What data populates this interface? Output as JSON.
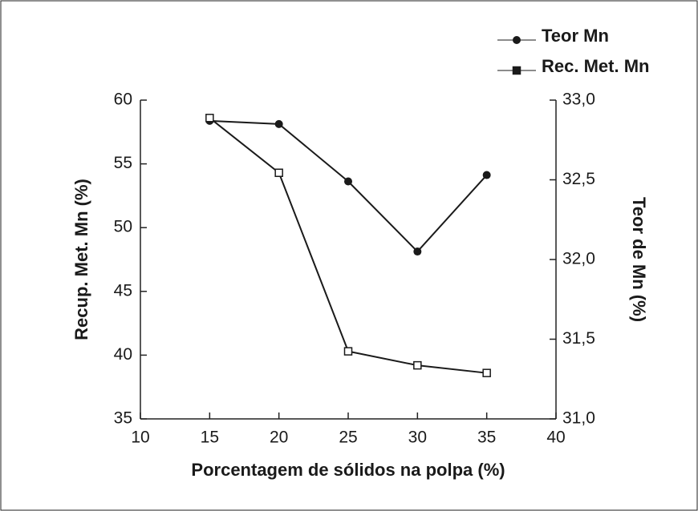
{
  "chart_data": {
    "type": "line",
    "x_label": "Porcentagem de sólidos na polpa (%)",
    "y_label": "Recup. Met. Mn (%)",
    "y2_label": "Teor de Mn (%)",
    "xlim": [
      10,
      40
    ],
    "xticks": [
      10,
      15,
      20,
      25,
      30,
      35,
      40
    ],
    "ylim": [
      35,
      60
    ],
    "yticks": [
      35,
      40,
      45,
      50,
      55,
      60
    ],
    "y2lim": [
      31.0,
      33.0
    ],
    "y2ticks": [
      {
        "value": 31.0,
        "label": "31,0"
      },
      {
        "value": 31.5,
        "label": "31,5"
      },
      {
        "value": 32.0,
        "label": "32,0"
      },
      {
        "value": 32.5,
        "label": "32,5"
      },
      {
        "value": 33.0,
        "label": "33,0"
      }
    ],
    "x": [
      15,
      20,
      25,
      30,
      35
    ],
    "series": [
      {
        "name": "Teor Mn",
        "color": "#1a1a1a",
        "marker": "circle",
        "axis": "y2",
        "values": [
          32.87,
          32.85,
          32.49,
          32.05,
          32.53
        ]
      },
      {
        "name": "Rec. Met. Mn",
        "color": "#1a1a1a",
        "marker": "square",
        "axis": "y",
        "values": [
          58.6,
          54.3,
          40.3,
          39.2,
          38.6
        ]
      }
    ]
  }
}
